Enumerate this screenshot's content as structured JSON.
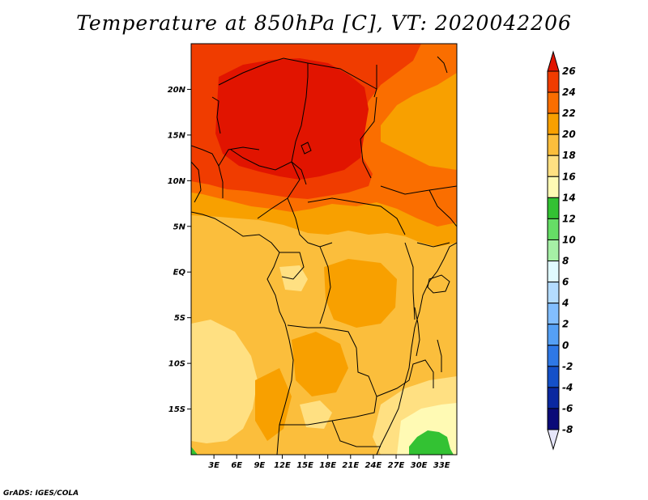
{
  "title": "Temperature at 850hPa [C], VT: 2020042206",
  "credit": "GrADS: IGES/COLA",
  "map": {
    "lon_range": [
      0,
      35
    ],
    "lat_range": [
      -20,
      25
    ],
    "lat_ticks": [
      {
        "value": 20,
        "label": "20N"
      },
      {
        "value": 15,
        "label": "15N"
      },
      {
        "value": 10,
        "label": "10N"
      },
      {
        "value": 5,
        "label": "5N"
      },
      {
        "value": 0,
        "label": "EQ"
      },
      {
        "value": -5,
        "label": "5S"
      },
      {
        "value": -10,
        "label": "10S"
      },
      {
        "value": -15,
        "label": "15S"
      }
    ],
    "lon_ticks": [
      {
        "value": 3,
        "label": "3E"
      },
      {
        "value": 6,
        "label": "6E"
      },
      {
        "value": 9,
        "label": "9E"
      },
      {
        "value": 12,
        "label": "12E"
      },
      {
        "value": 15,
        "label": "15E"
      },
      {
        "value": 18,
        "label": "18E"
      },
      {
        "value": 21,
        "label": "21E"
      },
      {
        "value": 24,
        "label": "24E"
      },
      {
        "value": 27,
        "label": "27E"
      },
      {
        "value": 30,
        "label": "30E"
      },
      {
        "value": 33,
        "label": "33E"
      }
    ]
  },
  "colorbar": {
    "levels": [
      26,
      24,
      22,
      20,
      18,
      16,
      14,
      12,
      10,
      8,
      6,
      4,
      2,
      0,
      -2,
      -4,
      -6,
      -8
    ],
    "colors": [
      "#e11400",
      "#f03c00",
      "#fa6e00",
      "#f8a000",
      "#fbbe3c",
      "#ffe082",
      "#fffab4",
      "#33c233",
      "#66dd66",
      "#a6f0a6",
      "#e0faff",
      "#b4dcff",
      "#82beff",
      "#55a0f5",
      "#2e78e6",
      "#1450c8",
      "#0a28a0",
      "#0a0a78",
      "#e6e6fa"
    ]
  }
}
